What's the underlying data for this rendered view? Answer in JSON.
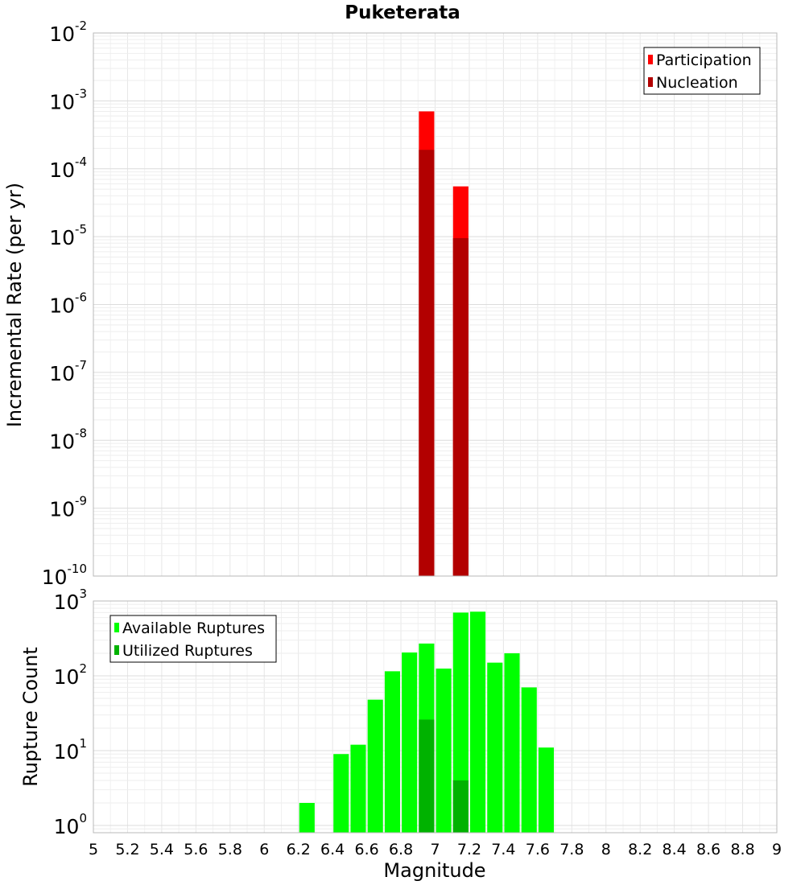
{
  "title": "Puketerata",
  "chart_data": [
    {
      "type": "bar",
      "title": "Puketerata",
      "xlabel": "Magnitude",
      "ylabel": "Incremental Rate (per yr)",
      "y_scale": "log",
      "xlim": [
        5,
        9
      ],
      "ylim": [
        1e-10,
        0.01
      ],
      "grid": true,
      "legend_position": "top-right",
      "bar_width": 0.09,
      "y_ticks": [
        {
          "base": "10",
          "exp": "-2",
          "value": 0.01
        },
        {
          "base": "10",
          "exp": "-3",
          "value": 0.001
        },
        {
          "base": "10",
          "exp": "-4",
          "value": 0.0001
        },
        {
          "base": "10",
          "exp": "-5",
          "value": 1e-05
        },
        {
          "base": "10",
          "exp": "-6",
          "value": 1e-06
        },
        {
          "base": "10",
          "exp": "-7",
          "value": 1e-07
        },
        {
          "base": "10",
          "exp": "-8",
          "value": 1e-08
        },
        {
          "base": "10",
          "exp": "-9",
          "value": 1e-09
        },
        {
          "base": "10",
          "exp": "-10",
          "value": 1e-10
        }
      ],
      "series": [
        {
          "name": "Participation",
          "color": "#ff0000",
          "x": [
            6.95,
            7.15
          ],
          "values": [
            0.0007,
            5.5e-05
          ]
        },
        {
          "name": "Nucleation",
          "color": "#b20000",
          "x": [
            6.95,
            7.15
          ],
          "values": [
            0.00019,
            9.5e-06
          ]
        }
      ]
    },
    {
      "type": "bar",
      "xlabel": "Magnitude",
      "ylabel": "Rupture Count",
      "y_scale": "log",
      "xlim": [
        5,
        9
      ],
      "ylim": [
        0.8,
        1000
      ],
      "grid": true,
      "legend_position": "top-left",
      "bar_width": 0.09,
      "y_ticks": [
        {
          "base": "10",
          "exp": "3",
          "value": 1000
        },
        {
          "base": "10",
          "exp": "2",
          "value": 100
        },
        {
          "base": "10",
          "exp": "1",
          "value": 10
        },
        {
          "base": "10",
          "exp": "0",
          "value": 1
        }
      ],
      "x_ticks": [
        "5",
        "5.2",
        "5.4",
        "5.6",
        "5.8",
        "6",
        "6.2",
        "6.4",
        "6.6",
        "6.8",
        "7",
        "7.2",
        "7.4",
        "7.6",
        "7.8",
        "8",
        "8.2",
        "8.4",
        "8.6",
        "8.8",
        "9"
      ],
      "series": [
        {
          "name": "Available Ruptures",
          "color": "#00ff00",
          "x": [
            6.25,
            6.45,
            6.55,
            6.65,
            6.75,
            6.85,
            6.95,
            7.05,
            7.15,
            7.25,
            7.35,
            7.45,
            7.55,
            7.65
          ],
          "values": [
            2,
            9,
            12,
            48,
            115,
            205,
            270,
            125,
            700,
            720,
            150,
            200,
            70,
            11
          ]
        },
        {
          "name": "Utilized Ruptures",
          "color": "#00b200",
          "x": [
            6.95,
            7.15
          ],
          "values": [
            26,
            4
          ]
        }
      ]
    }
  ]
}
